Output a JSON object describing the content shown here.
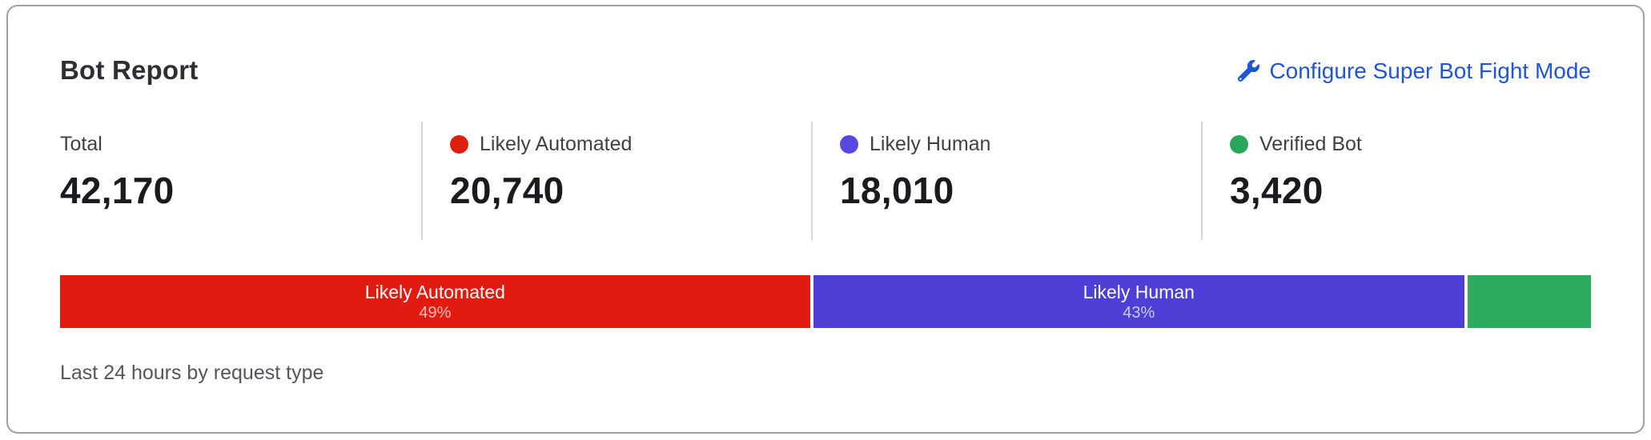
{
  "card": {
    "title": "Bot Report",
    "link": {
      "label": "Configure Super Bot Fight Mode",
      "icon": "wrench-icon",
      "color": "#2056d2"
    },
    "stats": [
      {
        "label": "Total",
        "value": "42,170",
        "dot_color": null
      },
      {
        "label": "Likely Automated",
        "value": "20,740",
        "dot_color": "#e0200f"
      },
      {
        "label": "Likely Human",
        "value": "18,010",
        "dot_color": "#5847e0"
      },
      {
        "label": "Verified Bot",
        "value": "3,420",
        "dot_color": "#27a65c"
      }
    ],
    "footer": "Last 24 hours by request type"
  },
  "chart_data": {
    "type": "bar",
    "variant": "stacked-horizontal-100pct",
    "title": "Bot Report",
    "caption": "Last 24 hours by request type",
    "total": 42170,
    "legend_position": "above (stat columns)",
    "segments": [
      {
        "name": "Likely Automated",
        "value": 20740,
        "percent": 49.2,
        "percent_label": "49%",
        "label": "Likely Automated",
        "color": "#e11b0f"
      },
      {
        "name": "Likely Human",
        "value": 18010,
        "percent": 42.7,
        "percent_label": "43%",
        "label": "Likely Human",
        "color": "#4e3fd6"
      },
      {
        "name": "Verified Bot",
        "value": 3420,
        "percent": 8.1,
        "percent_label": "",
        "label": "",
        "color": "#2dab61"
      }
    ]
  },
  "colors": {
    "card_border": "#a0a0a4",
    "divider": "#d6d6d8",
    "title_text": "#2e2e33",
    "value_text": "#1b1b1f",
    "label_text": "#3f3f46",
    "footer_text": "#55555c",
    "link_blue": "#2056d2"
  }
}
